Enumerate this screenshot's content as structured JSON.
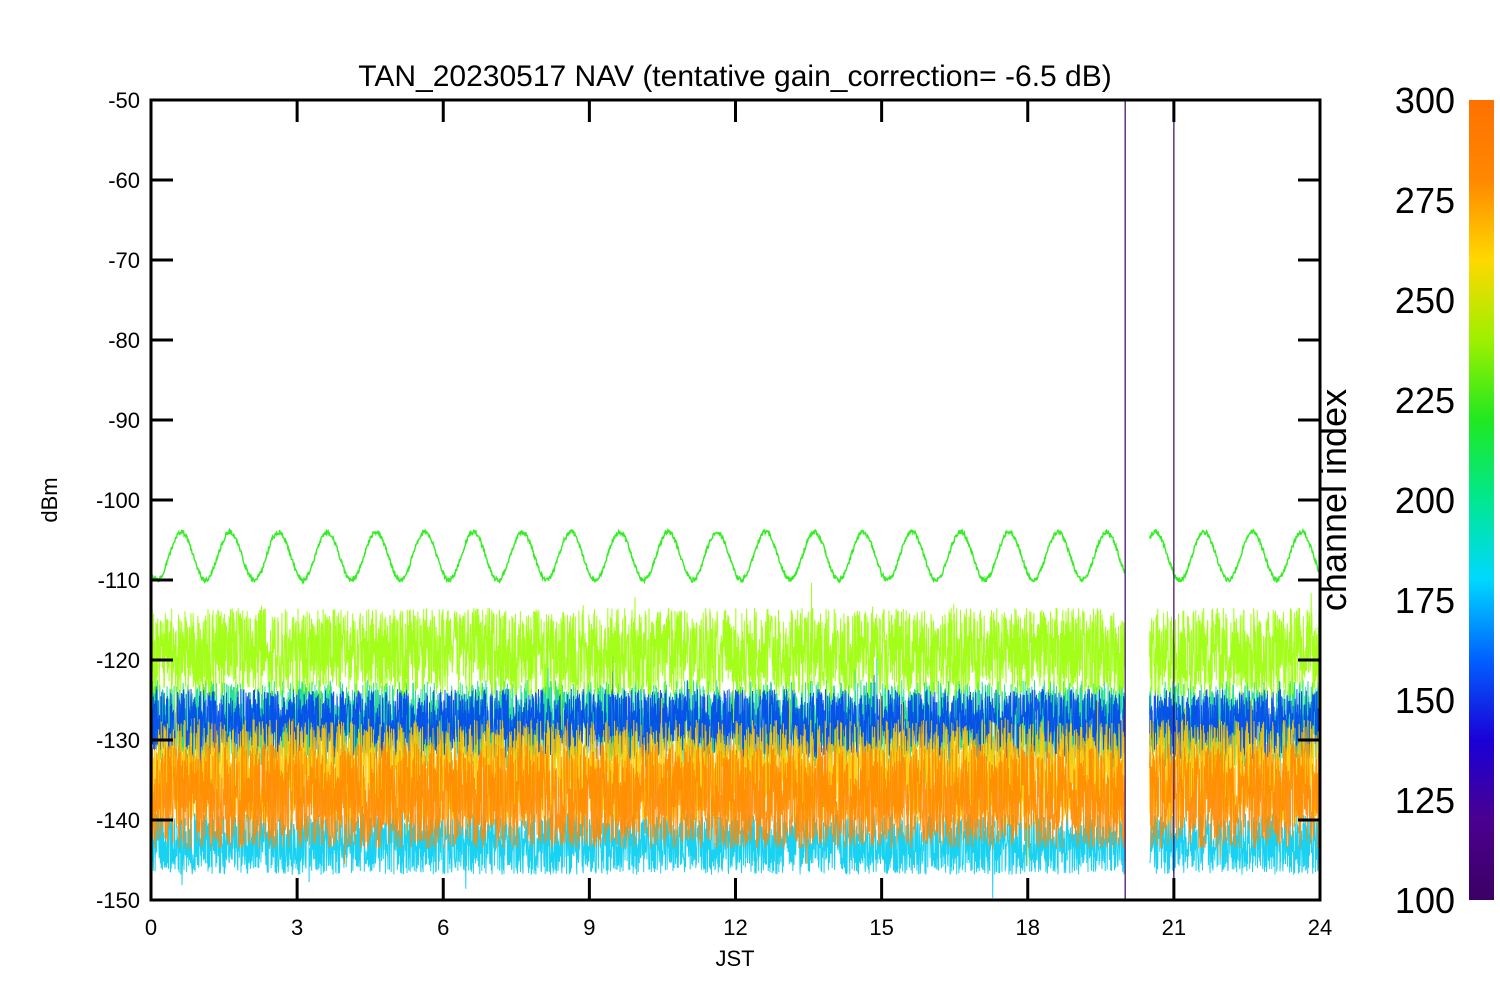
{
  "chart_data": {
    "type": "line",
    "title": "TAN_20230517 NAV (tentative gain_correction= -6.5 dB)",
    "xlabel": "JST",
    "ylabel": "dBm",
    "xlim": [
      0,
      24
    ],
    "ylim": [
      -150,
      -50
    ],
    "xticks": [
      0,
      3,
      6,
      9,
      12,
      15,
      18,
      21,
      24
    ],
    "yticks": [
      -50,
      -60,
      -70,
      -80,
      -90,
      -100,
      -110,
      -120,
      -130,
      -140,
      -150
    ],
    "grid": false,
    "data_gap": [
      20.0,
      20.5
    ],
    "vertical_lines": [
      20.0,
      21.0
    ],
    "colorbar": {
      "label": "channel index",
      "range": [
        100,
        300
      ],
      "ticks": [
        300,
        275,
        250,
        225,
        200,
        175,
        150,
        125,
        100
      ],
      "colors": [
        "#3b0063",
        "#4b0090",
        "#1a00d8",
        "#0060ff",
        "#00d8ff",
        "#00e890",
        "#20e820",
        "#9ef000",
        "#ffd800",
        "#ff8800",
        "#ff7000"
      ]
    },
    "series": [
      {
        "channel": 240,
        "color": "#33ee22",
        "description": "sinusoid, mean about -107 dBm, amplitude about 3 dB, period about 1 h",
        "mean": -107,
        "amplitude": 3,
        "period_hours": 1
      },
      {
        "channel": 255,
        "color": "#99ff00",
        "mean": -119,
        "band": [
          -125,
          -115
        ]
      },
      {
        "channel": 210,
        "color": "#11dd88",
        "mean": -128,
        "band": [
          -134,
          -124
        ]
      },
      {
        "channel": 150,
        "color": "#0044ee",
        "mean": -128,
        "band": [
          -132,
          -124
        ]
      },
      {
        "channel": 275,
        "color": "#ffcc00",
        "mean": -134,
        "band": [
          -140,
          -128
        ]
      },
      {
        "channel": 290,
        "color": "#ff8800",
        "mean": -137,
        "band": [
          -143,
          -131
        ]
      },
      {
        "channel": 190,
        "color": "#00ccee",
        "mean": -143,
        "band": [
          -147,
          -140
        ]
      }
    ]
  }
}
